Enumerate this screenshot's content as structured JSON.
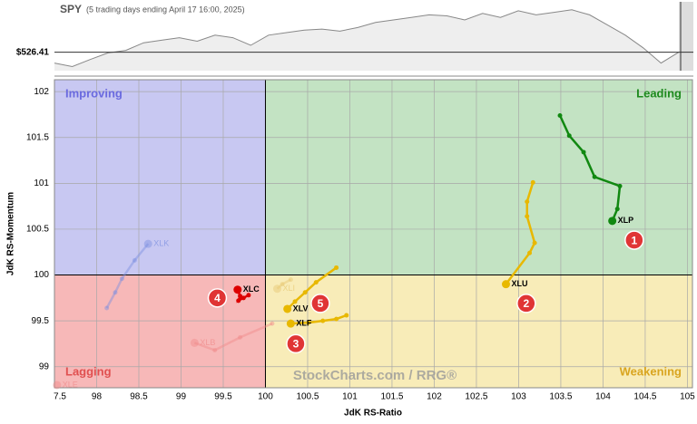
{
  "chart_data": [
    {
      "type": "line",
      "title": "SPY",
      "subtitle": "(5 trading days ending April 17 16:00, 2025)",
      "values": [
        505,
        498,
        512,
        525,
        530,
        545,
        550,
        555,
        548,
        560,
        555,
        540,
        560,
        565,
        570,
        572,
        568,
        575,
        585,
        590,
        595,
        600,
        598,
        590,
        603,
        595,
        608,
        600,
        605,
        610,
        600,
        580,
        560,
        535,
        505,
        526.41
      ],
      "ylim": [
        490,
        615
      ],
      "reference": {
        "value": 526.41,
        "label": "$526.41"
      },
      "color": "#888888"
    },
    {
      "type": "rrg",
      "x_label": "JdK RS-Ratio",
      "y_label": "JdK RS-Momentum",
      "xlim": [
        97.5,
        105.06
      ],
      "ylim": [
        98.77,
        102.13
      ],
      "center": 100,
      "xticks": [
        {
          "value": 97.5,
          "label": "7.5"
        },
        98,
        98.5,
        99,
        99.5,
        100,
        100.5,
        101,
        101.5,
        102,
        102.5,
        103,
        103.5,
        104,
        104.5,
        105
      ],
      "yticks": [
        99,
        99.5,
        100,
        100.5,
        101,
        101.5,
        102
      ],
      "grid": true,
      "quadrants": [
        {
          "name": "Improving",
          "color": "#6a6adf"
        },
        {
          "name": "Leading",
          "color": "#1e8a1e"
        },
        {
          "name": "Lagging",
          "color": "#e05050"
        },
        {
          "name": "Weakening",
          "color": "#d9a520"
        }
      ],
      "watermark": "StockCharts.com / RRG®",
      "series": [
        {
          "name": "XLK",
          "color": "#7a8fe0",
          "faded": true,
          "x": [
            98.12,
            98.22,
            98.3,
            98.45,
            98.61
          ],
          "y": [
            99.64,
            99.81,
            99.96,
            100.16,
            100.34
          ]
        },
        {
          "name": "XLB",
          "color": "#f08a8a",
          "faded": true,
          "x": [
            100.08,
            99.7,
            99.4,
            99.16
          ],
          "y": [
            99.47,
            99.32,
            99.18,
            99.26
          ]
        },
        {
          "name": "XLI",
          "color": "#e6c870",
          "faded": true,
          "x": [
            100.3,
            100.2,
            100.14
          ],
          "y": [
            99.95,
            99.9,
            99.85
          ]
        },
        {
          "name": "XLE",
          "color": "#f08a8a",
          "faded": true,
          "x": [
            97.53
          ],
          "y": [
            98.8
          ]
        },
        {
          "name": "XLP",
          "color": "#118811",
          "faded": false,
          "x": [
            103.49,
            103.6,
            103.77,
            103.9,
            104.2,
            104.17,
            104.11
          ],
          "y": [
            101.74,
            101.52,
            101.34,
            101.07,
            100.97,
            100.72,
            100.59
          ]
        },
        {
          "name": "XLU",
          "color": "#e8b800",
          "faded": false,
          "x": [
            103.17,
            103.1,
            103.1,
            103.19,
            103.13,
            102.85
          ],
          "y": [
            101.01,
            100.8,
            100.64,
            100.35,
            100.24,
            99.9
          ]
        },
        {
          "name": "XLF",
          "color": "#e8b800",
          "faded": false,
          "x": [
            100.96,
            100.84,
            100.68,
            100.51,
            100.3
          ],
          "y": [
            99.56,
            99.52,
            99.5,
            99.48,
            99.47
          ]
        },
        {
          "name": "XLV",
          "color": "#e8b800",
          "faded": false,
          "x": [
            100.84,
            100.6,
            100.47,
            100.35,
            100.26
          ],
          "y": [
            100.08,
            99.92,
            99.81,
            99.71,
            99.63
          ]
        },
        {
          "name": "XLC",
          "color": "#dd0000",
          "faded": false,
          "x": [
            99.8,
            99.74,
            99.68,
            99.7,
            99.67
          ],
          "y": [
            99.78,
            99.75,
            99.72,
            99.77,
            99.84
          ]
        }
      ],
      "annotations": [
        {
          "text": "1",
          "x": 104.37,
          "y": 100.38
        },
        {
          "text": "2",
          "x": 103.09,
          "y": 99.69
        },
        {
          "text": "3",
          "x": 100.36,
          "y": 99.25
        },
        {
          "text": "4",
          "x": 99.43,
          "y": 99.75
        },
        {
          "text": "5",
          "x": 100.65,
          "y": 99.69
        }
      ]
    }
  ]
}
